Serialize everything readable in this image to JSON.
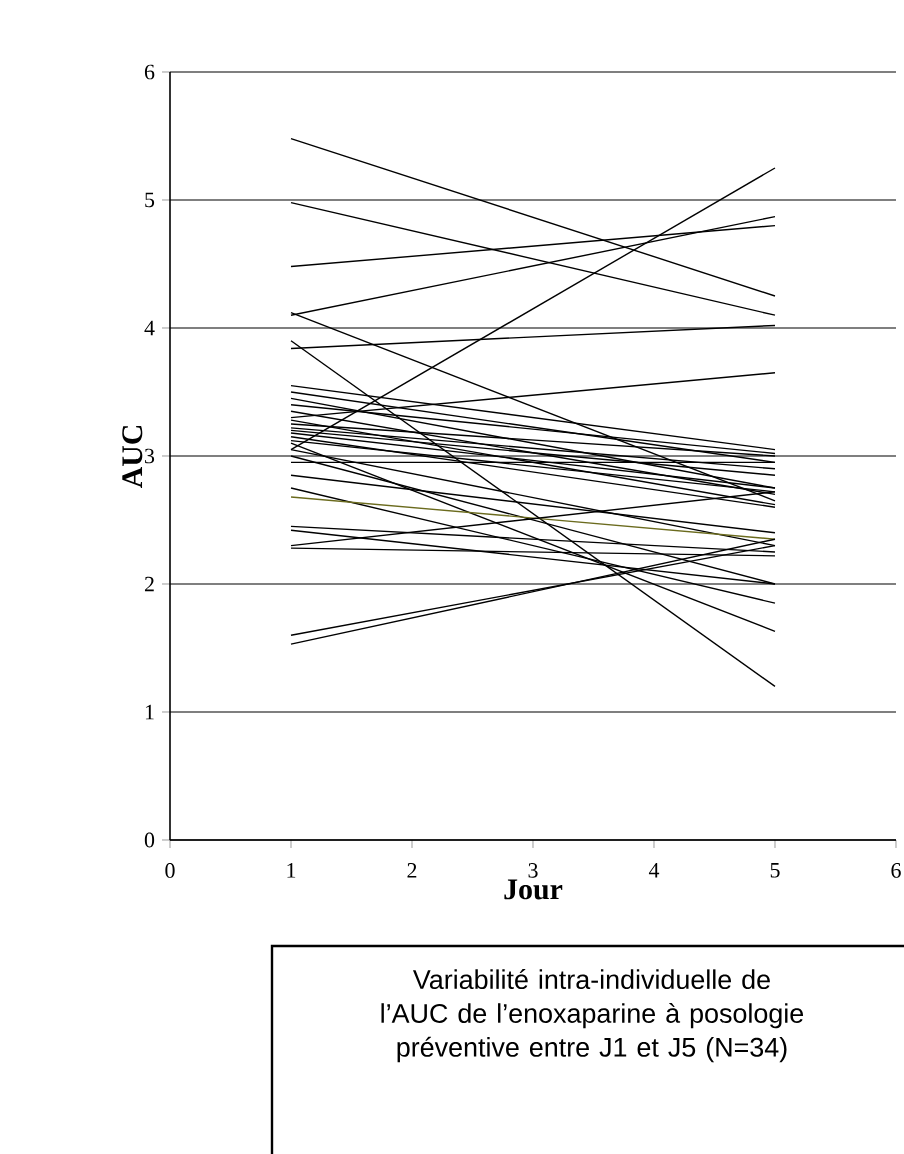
{
  "chart_data": {
    "type": "line",
    "xlabel": "Jour",
    "ylabel": "AUC",
    "xlim": [
      0,
      6
    ],
    "ylim": [
      0,
      6
    ],
    "xticks": [
      0,
      1,
      2,
      3,
      4,
      5,
      6
    ],
    "yticks": [
      0,
      1,
      2,
      3,
      4,
      5,
      6
    ],
    "grid": "y",
    "marker": "none",
    "line_style": "solid",
    "annotations": [
      "Variabilité intra-individuelle de l’AUC de l’enoxaparine à posologie préventive entre J1 et J5 (N=34)"
    ],
    "x": [
      1,
      5
    ],
    "series": [
      {
        "color": "#000000",
        "values": [
          5.48,
          4.25
        ]
      },
      {
        "color": "#000000",
        "values": [
          4.98,
          4.1
        ]
      },
      {
        "color": "#000000",
        "values": [
          4.48,
          4.8
        ]
      },
      {
        "color": "#000000",
        "values": [
          4.1,
          4.87
        ]
      },
      {
        "color": "#000000",
        "values": [
          4.12,
          2.65
        ]
      },
      {
        "color": "#000000",
        "values": [
          3.9,
          1.2
        ]
      },
      {
        "color": "#000000",
        "values": [
          3.84,
          4.02
        ]
      },
      {
        "color": "#000000",
        "values": [
          3.05,
          5.25
        ]
      },
      {
        "color": "#000000",
        "values": [
          3.3,
          3.65
        ]
      },
      {
        "color": "#000000",
        "values": [
          3.55,
          3.05
        ]
      },
      {
        "color": "#000000",
        "values": [
          3.5,
          2.95
        ]
      },
      {
        "color": "#000000",
        "values": [
          3.45,
          2.75
        ]
      },
      {
        "color": "#000000",
        "values": [
          3.35,
          2.7
        ]
      },
      {
        "color": "#000000",
        "values": [
          3.28,
          2.62
        ]
      },
      {
        "color": "#000000",
        "values": [
          3.25,
          3.0
        ]
      },
      {
        "color": "#000000",
        "values": [
          3.22,
          2.9
        ]
      },
      {
        "color": "#000000",
        "values": [
          3.2,
          2.85
        ]
      },
      {
        "color": "#000000",
        "values": [
          3.18,
          2.75
        ]
      },
      {
        "color": "#000000",
        "values": [
          3.15,
          2.6
        ]
      },
      {
        "color": "#000000",
        "values": [
          3.12,
          2.72
        ]
      },
      {
        "color": "#000000",
        "values": [
          3.1,
          1.63
        ]
      },
      {
        "color": "#000000",
        "values": [
          3.05,
          2.3
        ]
      },
      {
        "color": "#000000",
        "values": [
          3.0,
          2.0
        ]
      },
      {
        "color": "#000000",
        "values": [
          2.85,
          2.4
        ]
      },
      {
        "color": "#000000",
        "values": [
          2.75,
          1.85
        ]
      },
      {
        "color": "#6b6b1e",
        "values": [
          2.68,
          2.35
        ]
      },
      {
        "color": "#000000",
        "values": [
          2.45,
          2.25
        ]
      },
      {
        "color": "#000000",
        "values": [
          2.28,
          2.22
        ]
      },
      {
        "color": "#000000",
        "values": [
          1.6,
          2.3
        ]
      },
      {
        "color": "#000000",
        "values": [
          1.53,
          2.35
        ]
      },
      {
        "color": "#000000",
        "values": [
          2.42,
          2.0
        ]
      },
      {
        "color": "#000000",
        "values": [
          2.3,
          2.72
        ]
      },
      {
        "color": "#000000",
        "values": [
          3.4,
          3.02
        ]
      },
      {
        "color": "#000000",
        "values": [
          2.95,
          2.95
        ]
      }
    ]
  }
}
